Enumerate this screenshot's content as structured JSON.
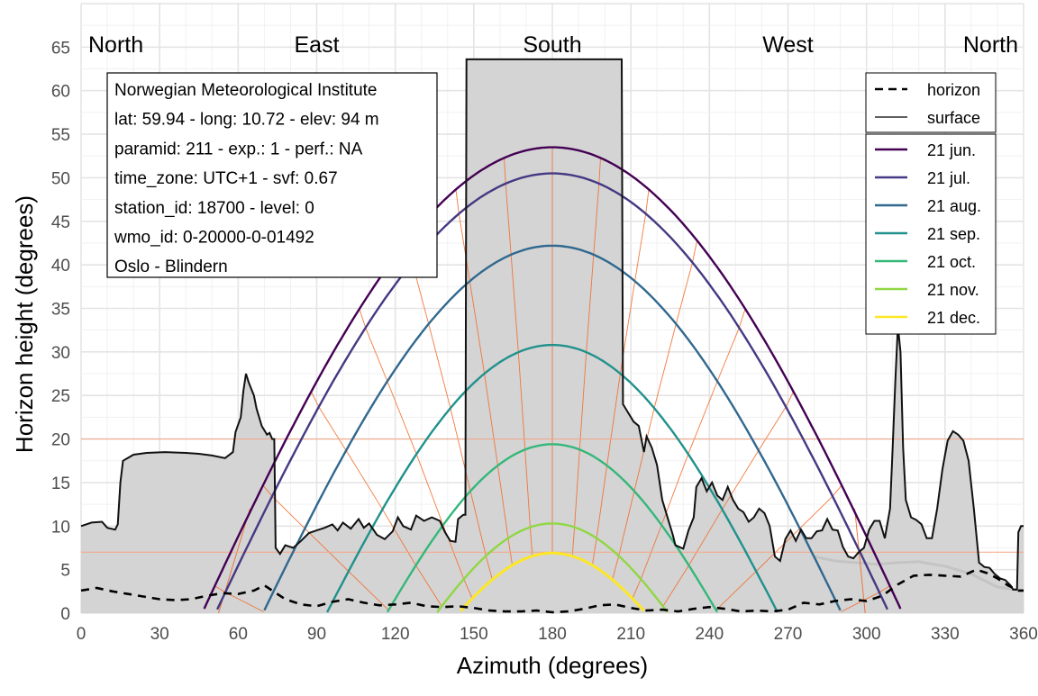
{
  "chart_data": {
    "type": "line",
    "xlabel": "Azimuth (degrees)",
    "ylabel": "Horizon height (degrees)",
    "xlim": [
      0,
      360
    ],
    "ylim": [
      0,
      70
    ],
    "x_ticks": [
      0,
      30,
      60,
      90,
      120,
      150,
      180,
      210,
      240,
      270,
      300,
      330,
      360
    ],
    "y_ticks": [
      0,
      5,
      10,
      15,
      20,
      25,
      30,
      35,
      40,
      45,
      50,
      55,
      60,
      65
    ],
    "grid": true,
    "compass": [
      {
        "label": "North",
        "az": 0
      },
      {
        "label": "East",
        "az": 90
      },
      {
        "label": "South",
        "az": 180
      },
      {
        "label": "West",
        "az": 270
      },
      {
        "label": "North",
        "az": 360
      }
    ],
    "info_box": [
      "Norwegian Meteorological Institute",
      "lat: 59.94 - long: 10.72 - elev: 94 m",
      "paramid: 211 - exp.: 1 - perf.: NA",
      "time_zone: UTC+1 - svf: 0.67",
      "station_id: 18700 - level: 0",
      "wmo_id: 0-20000-0-01492",
      "Oslo - Blindern"
    ],
    "legend_lines": [
      {
        "label": "horizon",
        "style": "dashed"
      },
      {
        "label": "surface",
        "style": "solid"
      }
    ],
    "sun_paths": [
      {
        "name": "21 jun.",
        "color": "#440154",
        "max_elev": 53.5,
        "az_range": [
          40,
          320
        ]
      },
      {
        "name": "21 jul.",
        "color": "#443983",
        "max_elev": 50.5,
        "az_range": [
          45,
          315
        ]
      },
      {
        "name": "21 aug.",
        "color": "#31688e",
        "max_elev": 42.2,
        "az_range": [
          63,
          297
        ]
      },
      {
        "name": "21 sep.",
        "color": "#21918c",
        "max_elev": 30.8,
        "az_range": [
          87,
          273
        ]
      },
      {
        "name": "21 oct.",
        "color": "#35b779",
        "max_elev": 19.4,
        "az_range": [
          109,
          251
        ]
      },
      {
        "name": "21 nov.",
        "color": "#90d743",
        "max_elev": 10.3,
        "az_range": [
          126,
          234
        ]
      },
      {
        "name": "21 dec.",
        "color": "#fde725",
        "max_elev": 6.9,
        "az_range": [
          133,
          227
        ]
      }
    ],
    "surface": [
      [
        0,
        10
      ],
      [
        4,
        10.4
      ],
      [
        8,
        10.5
      ],
      [
        10,
        9.8
      ],
      [
        13,
        9.6
      ],
      [
        14,
        10.2
      ],
      [
        15,
        15
      ],
      [
        16,
        17.5
      ],
      [
        20,
        18.2
      ],
      [
        25,
        18.4
      ],
      [
        32,
        18.5
      ],
      [
        40,
        18.4
      ],
      [
        45,
        18.3
      ],
      [
        50,
        18.1
      ],
      [
        55,
        17.8
      ],
      [
        58,
        18.5
      ],
      [
        59,
        20.8
      ],
      [
        61,
        22.5
      ],
      [
        62,
        25.5
      ],
      [
        63,
        27.5
      ],
      [
        64,
        26.5
      ],
      [
        66,
        25
      ],
      [
        67,
        23.5
      ],
      [
        69,
        21.5
      ],
      [
        71,
        20.5
      ],
      [
        72,
        20.7
      ],
      [
        73,
        20
      ],
      [
        73.8,
        20
      ],
      [
        74.3,
        7.5
      ],
      [
        76,
        6.8
      ],
      [
        78,
        7.8
      ],
      [
        81,
        7.5
      ],
      [
        84,
        8.3
      ],
      [
        87,
        9.2
      ],
      [
        90,
        9.5
      ],
      [
        93,
        9.8
      ],
      [
        96,
        10.2
      ],
      [
        98,
        9.5
      ],
      [
        100,
        10.4
      ],
      [
        103,
        9.7
      ],
      [
        106,
        10.8
      ],
      [
        108,
        9.8
      ],
      [
        110,
        10.3
      ],
      [
        113,
        9
      ],
      [
        116,
        8.5
      ],
      [
        119,
        9.4
      ],
      [
        121,
        11
      ],
      [
        123,
        10
      ],
      [
        126,
        9.6
      ],
      [
        128,
        11.2
      ],
      [
        131,
        10.6
      ],
      [
        134,
        11
      ],
      [
        137,
        10.6
      ],
      [
        139,
        9.3
      ],
      [
        141,
        8.3
      ],
      [
        143,
        8.2
      ],
      [
        144,
        10.8
      ],
      [
        146,
        11.3
      ],
      [
        146.8,
        11.3
      ],
      [
        147.2,
        63.6
      ],
      [
        206.5,
        63.6
      ],
      [
        207,
        24
      ],
      [
        209,
        23
      ],
      [
        211,
        22
      ],
      [
        213,
        21.5
      ],
      [
        215,
        18.5
      ],
      [
        216,
        20.3
      ],
      [
        218,
        19
      ],
      [
        220,
        17
      ],
      [
        222,
        13
      ],
      [
        224,
        11
      ],
      [
        226,
        9
      ],
      [
        227,
        7.8
      ],
      [
        230,
        7.4
      ],
      [
        232,
        9.5
      ],
      [
        234,
        11
      ],
      [
        235,
        14.5
      ],
      [
        237,
        15.5
      ],
      [
        239,
        14
      ],
      [
        241,
        15
      ],
      [
        243,
        13.5
      ],
      [
        245,
        13
      ],
      [
        247,
        14.5
      ],
      [
        249,
        13
      ],
      [
        251,
        12
      ],
      [
        253,
        11.6
      ],
      [
        255,
        10.5
      ],
      [
        257,
        11
      ],
      [
        259,
        12
      ],
      [
        261,
        11.5
      ],
      [
        263,
        10
      ],
      [
        265,
        6.5
      ],
      [
        267,
        6
      ],
      [
        269,
        8.5
      ],
      [
        271,
        9.5
      ],
      [
        273,
        8.3
      ],
      [
        275,
        9.6
      ],
      [
        277,
        8.6
      ],
      [
        279,
        8.6
      ],
      [
        281,
        9.4
      ],
      [
        283,
        9.5
      ],
      [
        285,
        10.8
      ],
      [
        287,
        9.6
      ],
      [
        289,
        9.5
      ],
      [
        291,
        7.6
      ],
      [
        293,
        6.5
      ],
      [
        295,
        6.3
      ],
      [
        297,
        7
      ],
      [
        299,
        7.5
      ],
      [
        301,
        9.6
      ],
      [
        303,
        10.6
      ],
      [
        305,
        10.6
      ],
      [
        307,
        8.6
      ],
      [
        309,
        12
      ],
      [
        310,
        19
      ],
      [
        311,
        26.5
      ],
      [
        312,
        33
      ],
      [
        313,
        30
      ],
      [
        314,
        19
      ],
      [
        315,
        13
      ],
      [
        317,
        11
      ],
      [
        319,
        10.7
      ],
      [
        321,
        10.2
      ],
      [
        323,
        8.6
      ],
      [
        325,
        8.6
      ],
      [
        327,
        12
      ],
      [
        329,
        16.5
      ],
      [
        331,
        19.8
      ],
      [
        333,
        20.9
      ],
      [
        335,
        20.5
      ],
      [
        337,
        19.8
      ],
      [
        339,
        17.5
      ],
      [
        341,
        12
      ],
      [
        343,
        5.8
      ],
      [
        345,
        5.3
      ],
      [
        347,
        5.2
      ],
      [
        349,
        4.5
      ],
      [
        351,
        4
      ],
      [
        353,
        3.8
      ],
      [
        355,
        3.2
      ],
      [
        356,
        2.7
      ],
      [
        357.5,
        2.7
      ],
      [
        358,
        9.3
      ],
      [
        359,
        10
      ],
      [
        360,
        10
      ]
    ],
    "horizon": [
      [
        0,
        2.6
      ],
      [
        6,
        2.9
      ],
      [
        12,
        2.5
      ],
      [
        18,
        2.2
      ],
      [
        24,
        1.9
      ],
      [
        30,
        1.6
      ],
      [
        36,
        1.5
      ],
      [
        42,
        1.6
      ],
      [
        48,
        2.0
      ],
      [
        54,
        2.3
      ],
      [
        60,
        2.2
      ],
      [
        66,
        2.6
      ],
      [
        70,
        3.2
      ],
      [
        73,
        2.6
      ],
      [
        78,
        1.6
      ],
      [
        84,
        1.0
      ],
      [
        90,
        0.8
      ],
      [
        96,
        1.3
      ],
      [
        102,
        1.6
      ],
      [
        108,
        1.2
      ],
      [
        114,
        0.9
      ],
      [
        120,
        1.0
      ],
      [
        126,
        1.2
      ],
      [
        132,
        0.8
      ],
      [
        138,
        0.7
      ],
      [
        144,
        0.8
      ],
      [
        150,
        0.6
      ],
      [
        156,
        0.3
      ],
      [
        162,
        0.2
      ],
      [
        168,
        0.2
      ],
      [
        174,
        0.3
      ],
      [
        180,
        0.1
      ],
      [
        186,
        0.2
      ],
      [
        192,
        0.5
      ],
      [
        198,
        0.9
      ],
      [
        204,
        1.0
      ],
      [
        210,
        0.6
      ],
      [
        216,
        0.3
      ],
      [
        222,
        0.4
      ],
      [
        228,
        0.2
      ],
      [
        234,
        0.5
      ],
      [
        240,
        0.7
      ],
      [
        246,
        0.5
      ],
      [
        252,
        0.2
      ],
      [
        258,
        0.3
      ],
      [
        264,
        0.2
      ],
      [
        270,
        0.4
      ],
      [
        276,
        1.2
      ],
      [
        282,
        1.0
      ],
      [
        288,
        1.4
      ],
      [
        294,
        1.6
      ],
      [
        300,
        1.4
      ],
      [
        306,
        2.0
      ],
      [
        312,
        3.3
      ],
      [
        318,
        4.3
      ],
      [
        324,
        4.4
      ],
      [
        330,
        4.3
      ],
      [
        336,
        4.2
      ],
      [
        342,
        5.0
      ],
      [
        346,
        4.6
      ],
      [
        350,
        4.0
      ],
      [
        354,
        3.2
      ],
      [
        358,
        2.6
      ],
      [
        360,
        2.6
      ]
    ],
    "grey_curve": [
      [
        280,
        6.5
      ],
      [
        288,
        6.0
      ],
      [
        296,
        5.8
      ],
      [
        304,
        5.6
      ],
      [
        312,
        5.8
      ],
      [
        320,
        5.9
      ],
      [
        330,
        5.4
      ],
      [
        340,
        4.5
      ],
      [
        350,
        3.0
      ],
      [
        360,
        2.6
      ]
    ],
    "reference_lines": [
      20,
      7
    ]
  }
}
